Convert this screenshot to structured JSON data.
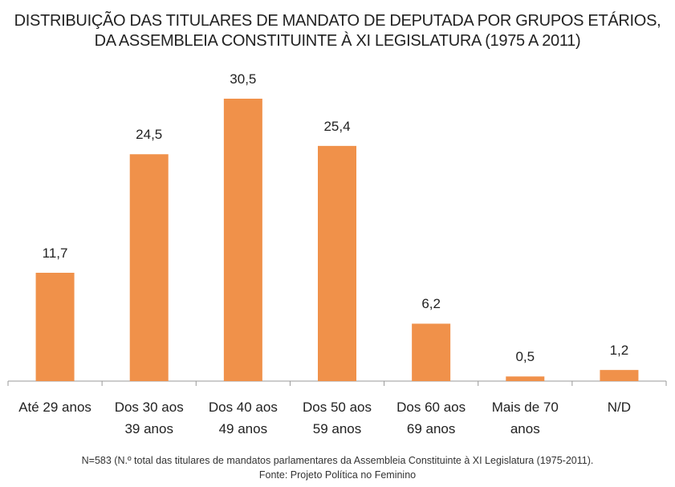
{
  "chart_data": {
    "type": "bar",
    "title": "DISTRIBUIÇÃO DAS TITULARES DE MANDATO DE DEPUTADA POR GRUPOS ETÁRIOS,\nDA ASSEMBLEIA CONSTITUINTE À XI LEGISLATURA (1975 A 2011)",
    "categories": [
      "Até 29 anos",
      "Dos 30 aos\n39 anos",
      "Dos 40 aos\n49 anos",
      "Dos 50 aos\n59 anos",
      "Dos 60 aos\n69 anos",
      "Mais de 70\nanos",
      "N/D"
    ],
    "values": [
      11.7,
      24.5,
      30.5,
      25.4,
      6.2,
      0.5,
      1.2
    ],
    "value_labels": [
      "11,7",
      "24,5",
      "30,5",
      "25,4",
      "6,2",
      "0,5",
      "1,2"
    ],
    "color": "#f0914a",
    "notes": [
      "N=583 (N.º total das titulares de mandatos parlamentares da Assembleia Constituinte à XI Legislatura (1975-2011).",
      "Fonte: Projeto Política no Feminino"
    ]
  }
}
